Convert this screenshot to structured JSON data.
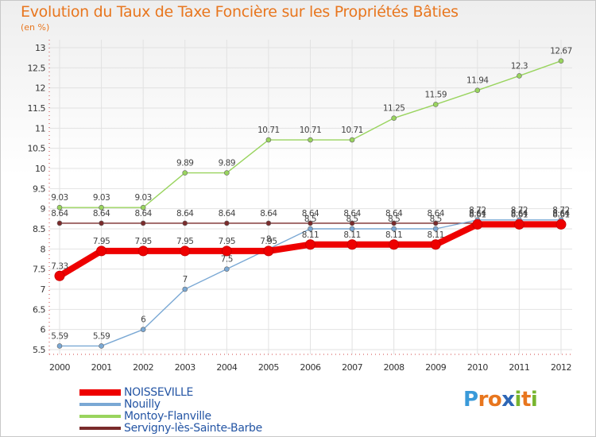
{
  "chart_data": {
    "type": "line",
    "title": "Evolution du Taux de Taxe Foncière sur les Propriétés Bâties",
    "unit_label": "(en %)",
    "x": [
      "2000",
      "2001",
      "2002",
      "2003",
      "2004",
      "2005",
      "2006",
      "2007",
      "2008",
      "2009",
      "2010",
      "2011",
      "2012"
    ],
    "ylim": [
      5.5,
      13
    ],
    "yticks": [
      "5.5",
      "6",
      "6.5",
      "7",
      "7.5",
      "8",
      "8.5",
      "9",
      "9.5",
      "10",
      "10.5",
      "11",
      "11.5",
      "12",
      "12.5",
      "13"
    ],
    "series": [
      {
        "name": "Servigny-lès-Sainte-Barbe",
        "color": "#7a2b2b",
        "values": [
          8.64,
          8.64,
          8.64,
          8.64,
          8.64,
          8.64,
          8.64,
          8.64,
          8.64,
          8.64,
          8.64,
          8.64,
          8.64
        ],
        "labels": [
          "8.64",
          "8.64",
          "8.64",
          "8.64",
          "8.64",
          "8.64",
          "8.64",
          "8.64",
          "8.64",
          "8.64",
          "8.64",
          "8.64",
          "8.64"
        ]
      },
      {
        "name": "Montoy-Flanville",
        "color": "#99d45e",
        "values": [
          9.03,
          9.03,
          9.03,
          9.89,
          9.89,
          10.71,
          10.71,
          10.71,
          11.25,
          11.59,
          11.94,
          12.3,
          12.67
        ],
        "labels": [
          "9.03",
          "9.03",
          "9.03",
          "9.89",
          "9.89",
          "10.71",
          "10.71",
          "10.71",
          "11.25",
          "11.59",
          "11.94",
          "12.3",
          "12.67"
        ]
      },
      {
        "name": "Nouilly",
        "color": "#7aa8d4",
        "values": [
          5.59,
          5.59,
          6,
          7,
          7.5,
          8,
          8.5,
          8.5,
          8.5,
          8.5,
          8.72,
          8.72,
          8.72
        ],
        "labels": [
          "5.59",
          "5.59",
          "6",
          "7",
          "7.5",
          "8",
          "8.5",
          "8.5",
          "8.5",
          "8.5",
          "8.72",
          "8.72",
          "8.72"
        ]
      },
      {
        "name": "NOISSEVILLE",
        "color": "#ee0000",
        "values": [
          7.33,
          7.95,
          7.95,
          7.95,
          7.95,
          7.95,
          8.11,
          8.11,
          8.11,
          8.11,
          8.61,
          8.61,
          8.61
        ],
        "labels": [
          "7.33",
          "7.95",
          "7.95",
          "7.95",
          "7.95",
          "7.95",
          "8.11",
          "8.11",
          "8.11",
          "8.11",
          "8.61",
          "8.61",
          "8.61"
        ]
      }
    ],
    "legend": [
      "NOISSEVILLE",
      "Nouilly",
      "Montoy-Flanville",
      "Servigny-lès-Sainte-Barbe"
    ],
    "legend_colors": [
      "#ee0000",
      "#7aa8d4",
      "#99d45e",
      "#7a2b2b"
    ],
    "logo": {
      "letters": [
        "P",
        "r",
        "o",
        "x",
        "i",
        "t",
        "i"
      ],
      "colors": [
        "#3a9ad9",
        "#e8761e",
        "#e8761e",
        "#2d66b5",
        "#78b52f",
        "#e8761e",
        "#78b52f"
      ]
    }
  }
}
